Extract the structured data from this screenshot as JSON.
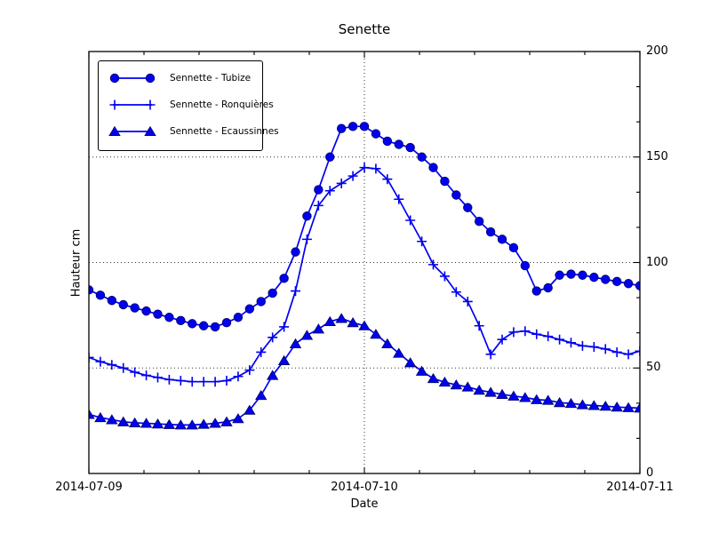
{
  "figure": {
    "title": "Senette",
    "background": "#ffffff"
  },
  "chart_data": {
    "type": "line",
    "title": "Senette",
    "xlabel": "Date",
    "ylabel": "Hauteur cm",
    "ylim": [
      0,
      200
    ],
    "xlim_hours": [
      0,
      48
    ],
    "x_unit": "hours since 2014-07-09 00:00",
    "x_tick_labels": [
      "2014-07-09",
      "2014-07-10",
      "2014-07-11"
    ],
    "x_tick_hours": [
      0,
      24,
      48
    ],
    "y_tick_labels": [
      "0",
      "50",
      "100",
      "150",
      "200"
    ],
    "y_tick_values": [
      0,
      50,
      100,
      150,
      200
    ],
    "grid": {
      "style": "dotted",
      "horizontal_at": [
        50,
        100,
        150
      ],
      "vertical_at_hours": [
        24
      ]
    },
    "legend_position": "upper left",
    "x_hours": [
      0,
      1,
      2,
      3,
      4,
      5,
      6,
      7,
      8,
      9,
      10,
      11,
      12,
      13,
      14,
      15,
      16,
      17,
      18,
      19,
      20,
      21,
      22,
      23,
      24,
      25,
      26,
      27,
      28,
      29,
      30,
      31,
      32,
      33,
      34,
      35,
      36,
      37,
      38,
      39,
      40,
      41,
      42,
      43,
      44,
      45,
      46,
      47,
      48
    ],
    "series": [
      {
        "name": "Sennette - Tubize",
        "marker": "circle",
        "values": [
          87,
          84.5,
          82,
          80,
          78.5,
          77,
          75.5,
          74,
          72.5,
          71,
          70,
          69.5,
          71.5,
          74,
          78,
          81.5,
          85.5,
          92.5,
          105,
          122,
          134.5,
          150,
          163.5,
          164.5,
          164.5,
          161,
          157.5,
          156,
          154.5,
          150,
          145,
          138.5,
          132,
          126,
          119.5,
          114.5,
          111,
          107,
          98.5,
          86.5,
          88,
          94,
          94.5,
          94,
          93,
          92,
          91,
          90,
          89
        ]
      },
      {
        "name": "Sennette - Ronquières",
        "marker": "plus",
        "values": [
          55,
          53,
          51.5,
          50,
          48,
          46.5,
          45.5,
          44.5,
          44,
          43.5,
          43.5,
          43.5,
          44,
          46,
          49,
          57.5,
          64.5,
          69.5,
          86.5,
          111,
          127,
          134,
          137.5,
          141,
          145,
          144.5,
          139.5,
          130,
          120,
          110,
          99,
          93.5,
          86,
          81.5,
          70,
          56.5,
          63.5,
          67,
          67.5,
          66,
          65,
          63.5,
          62,
          60.5,
          60,
          59,
          57.5,
          56.5,
          58
        ]
      },
      {
        "name": "Sennette - Ecaussinnes",
        "marker": "triangle",
        "values": [
          28,
          26.5,
          25.5,
          24.5,
          24,
          23.8,
          23.5,
          23.2,
          23,
          23,
          23.3,
          23.8,
          24.5,
          26,
          30,
          37,
          46.5,
          53.5,
          61.5,
          65.5,
          68.5,
          72,
          73.5,
          71.5,
          70,
          66,
          61.5,
          57,
          52.5,
          48.5,
          45,
          43.3,
          42,
          41,
          39.5,
          38.5,
          37.5,
          36.7,
          36,
          35,
          34.7,
          33.6,
          33.2,
          32.6,
          32.2,
          31.9,
          31.5,
          31.2,
          31
        ]
      }
    ],
    "colors": {
      "line": "#0000f0",
      "marker_fill": "#0000f0",
      "marker_edge": "#000060",
      "frame": "#000000",
      "grid": "#333333",
      "text": "#000000"
    }
  }
}
